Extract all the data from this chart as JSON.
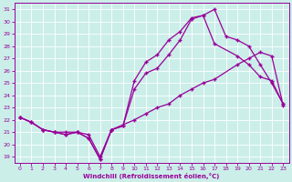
{
  "xlabel": "Windchill (Refroidissement éolien,°C)",
  "ylabel": "",
  "bg_color": "#cbeee9",
  "line_color": "#990099",
  "grid_color": "#ffffff",
  "xlim": [
    -0.5,
    23.5
  ],
  "ylim": [
    18.5,
    31.5
  ],
  "xticks": [
    0,
    1,
    2,
    3,
    4,
    5,
    6,
    7,
    8,
    9,
    10,
    11,
    12,
    13,
    14,
    15,
    16,
    17,
    18,
    19,
    20,
    21,
    22,
    23
  ],
  "yticks": [
    19,
    20,
    21,
    22,
    23,
    24,
    25,
    26,
    27,
    28,
    29,
    30,
    31
  ],
  "line1_x": [
    0,
    1,
    2,
    3,
    4,
    5,
    6,
    7,
    8,
    10,
    11,
    12,
    13,
    14,
    15,
    16,
    17,
    19,
    20,
    21,
    22,
    23
  ],
  "line1_y": [
    22.2,
    21.8,
    21.2,
    21.0,
    21.0,
    21.0,
    20.8,
    19.0,
    21.2,
    22.0,
    22.5,
    23.0,
    23.3,
    24.0,
    24.5,
    25.0,
    25.3,
    26.5,
    27.0,
    27.5,
    27.2,
    23.2
  ],
  "line2_x": [
    0,
    1,
    2,
    3,
    4,
    5,
    6,
    7,
    8,
    9,
    10,
    11,
    12,
    13,
    14,
    15,
    16,
    17,
    19,
    20,
    21,
    22,
    23
  ],
  "line2_y": [
    22.2,
    21.8,
    21.2,
    21.0,
    20.8,
    21.0,
    20.5,
    18.8,
    21.2,
    21.5,
    24.5,
    25.8,
    26.2,
    27.3,
    28.5,
    30.2,
    30.5,
    28.2,
    27.2,
    26.5,
    25.5,
    25.2,
    23.3
  ],
  "line3_x": [
    0,
    1,
    2,
    3,
    4,
    5,
    6,
    7,
    8,
    9,
    10,
    11,
    12,
    13,
    14,
    15,
    16,
    17,
    18,
    19,
    20,
    21,
    22,
    23
  ],
  "line3_y": [
    22.2,
    21.8,
    21.2,
    21.0,
    20.8,
    21.0,
    20.5,
    18.8,
    21.2,
    21.5,
    25.2,
    26.7,
    27.3,
    28.5,
    29.2,
    30.3,
    30.5,
    31.0,
    28.8,
    28.5,
    28.0,
    26.5,
    25.0,
    23.3
  ]
}
